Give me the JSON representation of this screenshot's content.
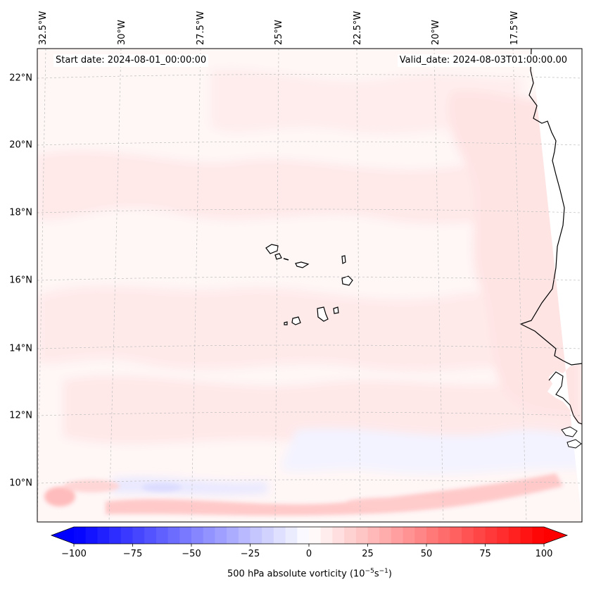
{
  "header": {
    "start_date": "Start date: 2024-08-01_00:00:00",
    "valid_date": "Valid_date: 2024-08-03T01:00:00.00"
  },
  "map": {
    "variable": "500 hPa absolute vorticity",
    "lon_labels": [
      "32.5°W",
      "30°W",
      "27.5°W",
      "25°W",
      "22.5°W",
      "20°W",
      "17.5°W"
    ],
    "lat_labels": [
      "22°N",
      "20°N",
      "18°N",
      "16°N",
      "14°N",
      "12°N",
      "10°N"
    ],
    "land_color": "#ffffff",
    "coast_color": "#000000"
  },
  "colorbar": {
    "label_prefix": "500 hPa absolute vorticity (10",
    "label_exp1": "−5",
    "label_mid": "s",
    "label_exp2": "−1",
    "label_suffix": ")",
    "ticks": [
      "−100",
      "−75",
      "−50",
      "−25",
      "0",
      "25",
      "50",
      "75",
      "100"
    ],
    "tick_values": [
      -100,
      -75,
      -50,
      -25,
      0,
      25,
      50,
      75,
      100
    ],
    "min": -100,
    "max": 100,
    "low_color": "#0000ff",
    "mid_color": "#ffffff",
    "high_color": "#ff0000"
  }
}
